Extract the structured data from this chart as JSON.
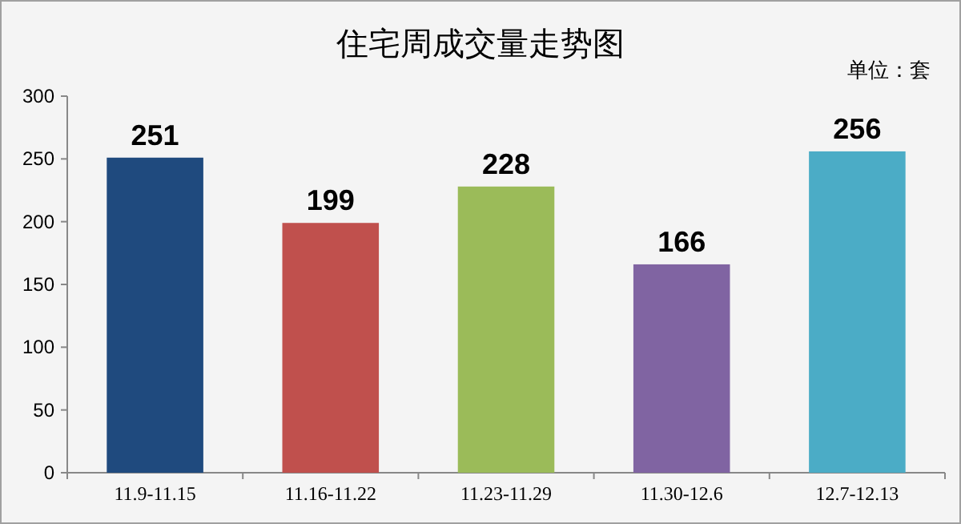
{
  "chart_data": {
    "type": "bar",
    "title": "住宅周成交量走势图",
    "annotations": [
      "单位：套"
    ],
    "categories": [
      "11.9-11.15",
      "11.16-11.22",
      "11.23-11.29",
      "11.30-12.6",
      "12.7-12.13"
    ],
    "values": [
      251,
      199,
      228,
      166,
      256
    ],
    "colors": [
      "#1f4a7e",
      "#c0504d",
      "#9bbb59",
      "#8064a2",
      "#4bacc6"
    ],
    "ylim": [
      0,
      300
    ],
    "yticks": [
      0,
      50,
      100,
      150,
      200,
      250,
      300
    ],
    "data_labels": true
  }
}
